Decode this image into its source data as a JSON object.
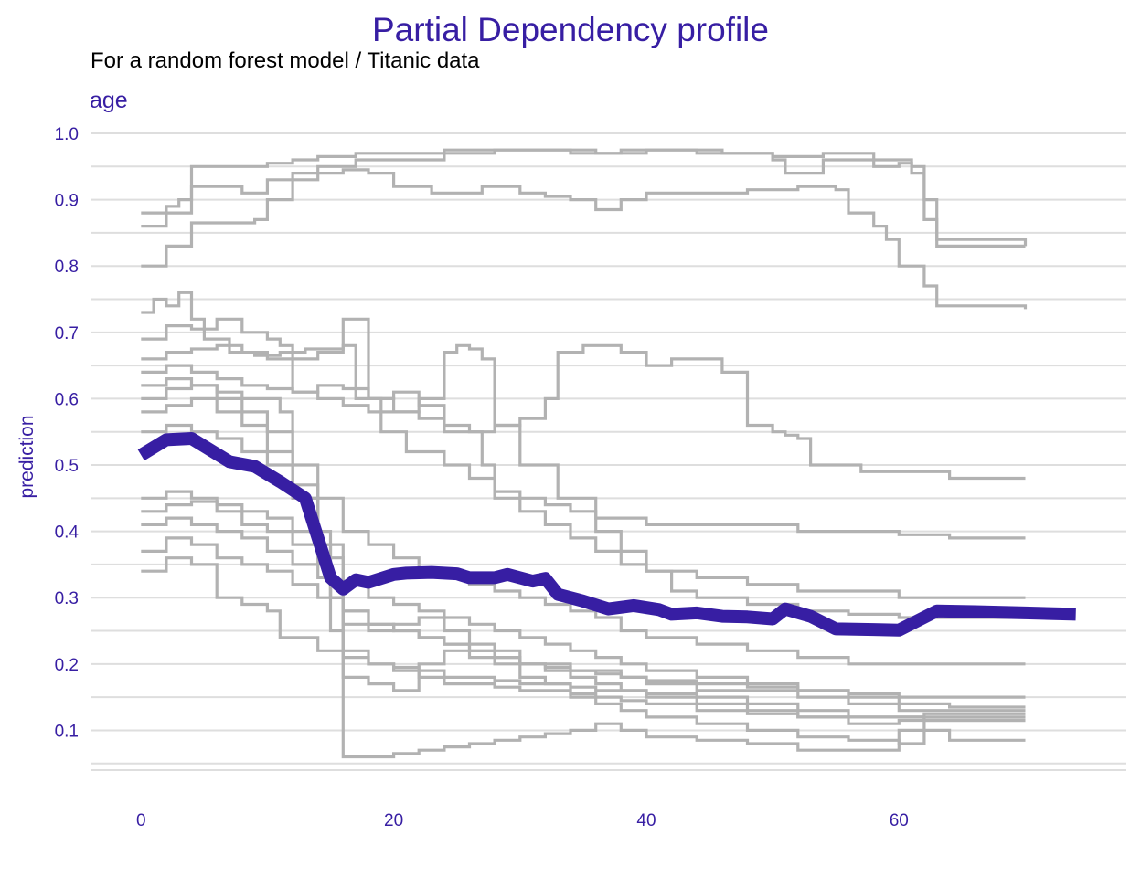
{
  "colors": {
    "accent": "#371ea3",
    "profile": "#b2b2b2",
    "grid": "#dedede"
  },
  "chart_data": {
    "type": "line",
    "title": "Partial Dependency profile",
    "subtitle": "For a random forest model / Titanic data",
    "facet": "age",
    "xlabel": "",
    "ylabel": "prediction",
    "xlim": [
      -4,
      78
    ],
    "ylim": [
      0.04,
      1.0
    ],
    "xticks": [
      0,
      20,
      40,
      60
    ],
    "yticks": [
      0.1,
      0.2,
      0.3,
      0.4,
      0.5,
      0.6,
      0.7,
      0.8,
      0.9,
      1.0
    ],
    "grid": true,
    "legend": "none",
    "series": [
      {
        "role": "aggregate",
        "x": [
          0,
          2,
          4,
          7,
          9,
          11,
          13,
          15,
          16,
          17,
          18,
          20,
          21,
          23,
          25,
          26,
          28,
          29,
          31,
          32,
          33,
          35,
          37,
          39,
          41,
          42,
          44,
          46,
          48,
          50,
          51,
          53,
          55,
          58,
          60,
          63,
          66,
          70,
          74
        ],
        "y": [
          0.515,
          0.538,
          0.54,
          0.505,
          0.498,
          0.475,
          0.45,
          0.33,
          0.313,
          0.327,
          0.323,
          0.335,
          0.337,
          0.338,
          0.336,
          0.33,
          0.33,
          0.335,
          0.325,
          0.329,
          0.305,
          0.295,
          0.283,
          0.288,
          0.282,
          0.275,
          0.277,
          0.272,
          0.271,
          0.268,
          0.283,
          0.272,
          0.253,
          0.252,
          0.251,
          0.28,
          0.279,
          0.277,
          0.275
        ]
      },
      {
        "role": "profile",
        "x": [
          0,
          2,
          3,
          4,
          8,
          10,
          12,
          14,
          17,
          20,
          24,
          28,
          30,
          34,
          38,
          42,
          46,
          50,
          54,
          58,
          60,
          61,
          62,
          63,
          70
        ],
        "y": [
          0.86,
          0.89,
          0.9,
          0.95,
          0.95,
          0.955,
          0.96,
          0.965,
          0.97,
          0.97,
          0.975,
          0.975,
          0.975,
          0.97,
          0.975,
          0.975,
          0.97,
          0.965,
          0.97,
          0.96,
          0.96,
          0.95,
          0.9,
          0.84,
          0.83
        ]
      },
      {
        "role": "profile",
        "x": [
          0,
          3,
          4,
          8,
          10,
          12,
          14,
          17,
          20,
          24,
          28,
          32,
          36,
          40,
          44,
          48,
          50,
          51,
          54,
          58,
          60,
          61,
          62,
          63,
          70
        ],
        "y": [
          0.88,
          0.88,
          0.92,
          0.91,
          0.93,
          0.94,
          0.95,
          0.96,
          0.96,
          0.97,
          0.975,
          0.975,
          0.97,
          0.975,
          0.97,
          0.97,
          0.96,
          0.94,
          0.96,
          0.95,
          0.955,
          0.94,
          0.87,
          0.83,
          0.83
        ]
      },
      {
        "role": "profile",
        "x": [
          0,
          2,
          4,
          7,
          9,
          10,
          12,
          14,
          16,
          18,
          20,
          23,
          27,
          30,
          32,
          34,
          36,
          38,
          40,
          44,
          48,
          52,
          55,
          56,
          58,
          59,
          60,
          62,
          63,
          70
        ],
        "y": [
          0.8,
          0.83,
          0.865,
          0.865,
          0.87,
          0.9,
          0.93,
          0.94,
          0.945,
          0.94,
          0.92,
          0.91,
          0.92,
          0.91,
          0.905,
          0.9,
          0.885,
          0.9,
          0.91,
          0.91,
          0.915,
          0.92,
          0.915,
          0.88,
          0.86,
          0.84,
          0.8,
          0.77,
          0.74,
          0.735
        ]
      },
      {
        "role": "profile",
        "x": [
          0,
          1,
          2,
          3,
          4,
          5,
          7,
          9,
          11,
          13,
          14,
          16,
          17,
          19,
          21,
          24,
          26,
          28,
          30,
          32,
          34,
          36,
          40,
          44,
          48,
          52,
          56,
          60,
          64,
          70
        ],
        "y": [
          0.73,
          0.75,
          0.74,
          0.76,
          0.72,
          0.69,
          0.67,
          0.665,
          0.67,
          0.675,
          0.675,
          0.68,
          0.6,
          0.55,
          0.52,
          0.5,
          0.48,
          0.46,
          0.45,
          0.44,
          0.43,
          0.42,
          0.41,
          0.41,
          0.41,
          0.4,
          0.4,
          0.395,
          0.39,
          0.39
        ]
      },
      {
        "role": "profile",
        "x": [
          0,
          2,
          4,
          6,
          8,
          10,
          11,
          12,
          14,
          16,
          18,
          20,
          22,
          24,
          26,
          27,
          28,
          30,
          32,
          34,
          36,
          38,
          40,
          44,
          48,
          52,
          56,
          60,
          64,
          70
        ],
        "y": [
          0.69,
          0.71,
          0.705,
          0.72,
          0.7,
          0.69,
          0.68,
          0.61,
          0.62,
          0.615,
          0.6,
          0.61,
          0.59,
          0.56,
          0.55,
          0.5,
          0.45,
          0.43,
          0.41,
          0.39,
          0.37,
          0.35,
          0.34,
          0.33,
          0.32,
          0.31,
          0.31,
          0.3,
          0.3,
          0.3
        ]
      },
      {
        "role": "profile",
        "x": [
          0,
          2,
          4,
          6,
          8,
          10,
          12,
          14,
          16,
          18,
          20,
          22,
          24,
          26,
          28,
          30,
          32,
          33,
          35,
          38,
          40,
          42,
          44,
          46,
          48,
          50,
          51,
          52,
          53,
          55,
          57,
          60,
          64,
          70
        ],
        "y": [
          0.66,
          0.67,
          0.675,
          0.68,
          0.67,
          0.66,
          0.66,
          0.67,
          0.72,
          0.6,
          0.58,
          0.57,
          0.55,
          0.55,
          0.56,
          0.57,
          0.6,
          0.67,
          0.68,
          0.67,
          0.65,
          0.66,
          0.66,
          0.64,
          0.56,
          0.55,
          0.545,
          0.54,
          0.5,
          0.5,
          0.49,
          0.49,
          0.48,
          0.48
        ]
      },
      {
        "role": "profile",
        "x": [
          0,
          2,
          4,
          6,
          8,
          10,
          12,
          14,
          16,
          18,
          20,
          22,
          24,
          25,
          26,
          27,
          28,
          30,
          33,
          36,
          38,
          40,
          42,
          44,
          48,
          52,
          56,
          60,
          63,
          70
        ],
        "y": [
          0.64,
          0.65,
          0.64,
          0.63,
          0.62,
          0.615,
          0.61,
          0.6,
          0.59,
          0.58,
          0.58,
          0.6,
          0.67,
          0.68,
          0.675,
          0.66,
          0.56,
          0.5,
          0.45,
          0.4,
          0.37,
          0.34,
          0.31,
          0.3,
          0.29,
          0.28,
          0.275,
          0.27,
          0.27,
          0.27
        ]
      },
      {
        "role": "profile",
        "x": [
          0,
          2,
          4,
          6,
          8,
          10,
          12,
          14,
          16,
          18,
          20,
          22,
          24,
          26,
          28,
          30,
          32,
          34,
          36,
          38,
          40,
          44,
          48,
          52,
          56,
          60,
          64,
          70
        ],
        "y": [
          0.62,
          0.63,
          0.62,
          0.6,
          0.58,
          0.55,
          0.5,
          0.45,
          0.4,
          0.38,
          0.36,
          0.34,
          0.33,
          0.32,
          0.31,
          0.3,
          0.29,
          0.28,
          0.27,
          0.25,
          0.24,
          0.23,
          0.22,
          0.21,
          0.2,
          0.2,
          0.2,
          0.2
        ]
      },
      {
        "role": "profile",
        "x": [
          0,
          2,
          4,
          6,
          8,
          10,
          11,
          12,
          14,
          15,
          16,
          18,
          20,
          22,
          24,
          26,
          28,
          30,
          32,
          34,
          36,
          38,
          40,
          44,
          48,
          52,
          56,
          60,
          62,
          64,
          70
        ],
        "y": [
          0.6,
          0.615,
          0.62,
          0.61,
          0.6,
          0.6,
          0.58,
          0.45,
          0.35,
          0.3,
          0.28,
          0.26,
          0.25,
          0.24,
          0.23,
          0.22,
          0.21,
          0.2,
          0.195,
          0.19,
          0.185,
          0.18,
          0.175,
          0.17,
          0.165,
          0.16,
          0.155,
          0.15,
          0.15,
          0.15,
          0.15
        ]
      },
      {
        "role": "profile",
        "x": [
          0,
          2,
          4,
          6,
          8,
          10,
          12,
          14,
          15,
          16,
          18,
          20,
          22,
          24,
          26,
          28,
          30,
          32,
          34,
          36,
          38,
          40,
          44,
          48,
          52,
          56,
          60,
          62,
          64,
          70
        ],
        "y": [
          0.58,
          0.59,
          0.6,
          0.58,
          0.56,
          0.52,
          0.47,
          0.4,
          0.3,
          0.18,
          0.17,
          0.16,
          0.2,
          0.22,
          0.21,
          0.2,
          0.18,
          0.17,
          0.15,
          0.14,
          0.13,
          0.12,
          0.11,
          0.1,
          0.09,
          0.085,
          0.08,
          0.12,
          0.12,
          0.12
        ]
      },
      {
        "role": "profile",
        "x": [
          0,
          2,
          4,
          6,
          8,
          10,
          12,
          14,
          16,
          18,
          20,
          22,
          24,
          26,
          28,
          30,
          32,
          34,
          36,
          38,
          40,
          44,
          48,
          52,
          56,
          60,
          62,
          64,
          70
        ],
        "y": [
          0.55,
          0.56,
          0.55,
          0.54,
          0.52,
          0.5,
          0.45,
          0.38,
          0.32,
          0.3,
          0.29,
          0.28,
          0.27,
          0.26,
          0.25,
          0.24,
          0.23,
          0.22,
          0.21,
          0.2,
          0.19,
          0.18,
          0.17,
          0.16,
          0.15,
          0.14,
          0.14,
          0.135,
          0.135
        ]
      },
      {
        "role": "profile",
        "x": [
          0,
          2,
          4,
          6,
          8,
          10,
          12,
          14,
          15,
          16,
          18,
          20,
          22,
          24,
          26,
          28,
          30,
          32,
          34,
          36,
          38,
          40,
          44,
          48,
          52,
          56,
          60,
          62,
          64,
          70
        ],
        "y": [
          0.45,
          0.46,
          0.45,
          0.44,
          0.43,
          0.42,
          0.4,
          0.38,
          0.3,
          0.06,
          0.06,
          0.065,
          0.07,
          0.075,
          0.08,
          0.085,
          0.09,
          0.095,
          0.1,
          0.11,
          0.1,
          0.09,
          0.085,
          0.08,
          0.07,
          0.07,
          0.1,
          0.1,
          0.085,
          0.085
        ]
      },
      {
        "role": "profile",
        "x": [
          0,
          2,
          4,
          6,
          8,
          10,
          12,
          14,
          16,
          18,
          20,
          22,
          24,
          26,
          28,
          30,
          32,
          34,
          36,
          38,
          40,
          44,
          48,
          52,
          56,
          60,
          62,
          64,
          70
        ],
        "y": [
          0.43,
          0.44,
          0.445,
          0.43,
          0.41,
          0.4,
          0.38,
          0.36,
          0.26,
          0.25,
          0.26,
          0.27,
          0.25,
          0.23,
          0.22,
          0.2,
          0.19,
          0.18,
          0.17,
          0.16,
          0.15,
          0.14,
          0.13,
          0.12,
          0.12,
          0.12,
          0.125,
          0.125,
          0.125
        ]
      },
      {
        "role": "profile",
        "x": [
          0,
          2,
          4,
          6,
          8,
          10,
          12,
          14,
          15,
          16,
          18,
          20,
          22,
          24,
          26,
          28,
          30,
          32,
          34,
          36,
          38,
          40,
          44,
          48,
          52,
          56,
          60,
          62,
          64,
          70
        ],
        "y": [
          0.41,
          0.42,
          0.41,
          0.4,
          0.39,
          0.37,
          0.35,
          0.33,
          0.25,
          0.22,
          0.2,
          0.19,
          0.18,
          0.17,
          0.17,
          0.165,
          0.16,
          0.16,
          0.155,
          0.15,
          0.145,
          0.14,
          0.13,
          0.125,
          0.12,
          0.11,
          0.115,
          0.115,
          0.115,
          0.115
        ]
      },
      {
        "role": "profile",
        "x": [
          0,
          2,
          4,
          6,
          8,
          10,
          12,
          14,
          16,
          18,
          20,
          22,
          24,
          26,
          28,
          30,
          32,
          34,
          36,
          38,
          40,
          44,
          48,
          52,
          56,
          60,
          62,
          64,
          70
        ],
        "y": [
          0.37,
          0.39,
          0.38,
          0.36,
          0.35,
          0.34,
          0.32,
          0.3,
          0.28,
          0.26,
          0.25,
          0.24,
          0.23,
          0.22,
          0.21,
          0.2,
          0.2,
          0.19,
          0.19,
          0.18,
          0.17,
          0.16,
          0.16,
          0.15,
          0.14,
          0.13,
          0.13,
          0.13,
          0.13
        ]
      },
      {
        "role": "profile",
        "x": [
          0,
          2,
          4,
          6,
          8,
          10,
          11,
          12,
          14,
          16,
          18,
          20,
          22,
          24,
          26,
          28,
          30,
          32,
          34,
          36,
          38,
          40,
          44,
          48,
          52,
          56,
          60,
          62,
          64,
          70
        ],
        "y": [
          0.34,
          0.36,
          0.35,
          0.3,
          0.29,
          0.28,
          0.24,
          0.24,
          0.22,
          0.21,
          0.2,
          0.195,
          0.19,
          0.18,
          0.18,
          0.175,
          0.17,
          0.17,
          0.165,
          0.16,
          0.16,
          0.155,
          0.15,
          0.14,
          0.13,
          0.12,
          0.12,
          0.115,
          0.115,
          0.115
        ]
      }
    ]
  }
}
